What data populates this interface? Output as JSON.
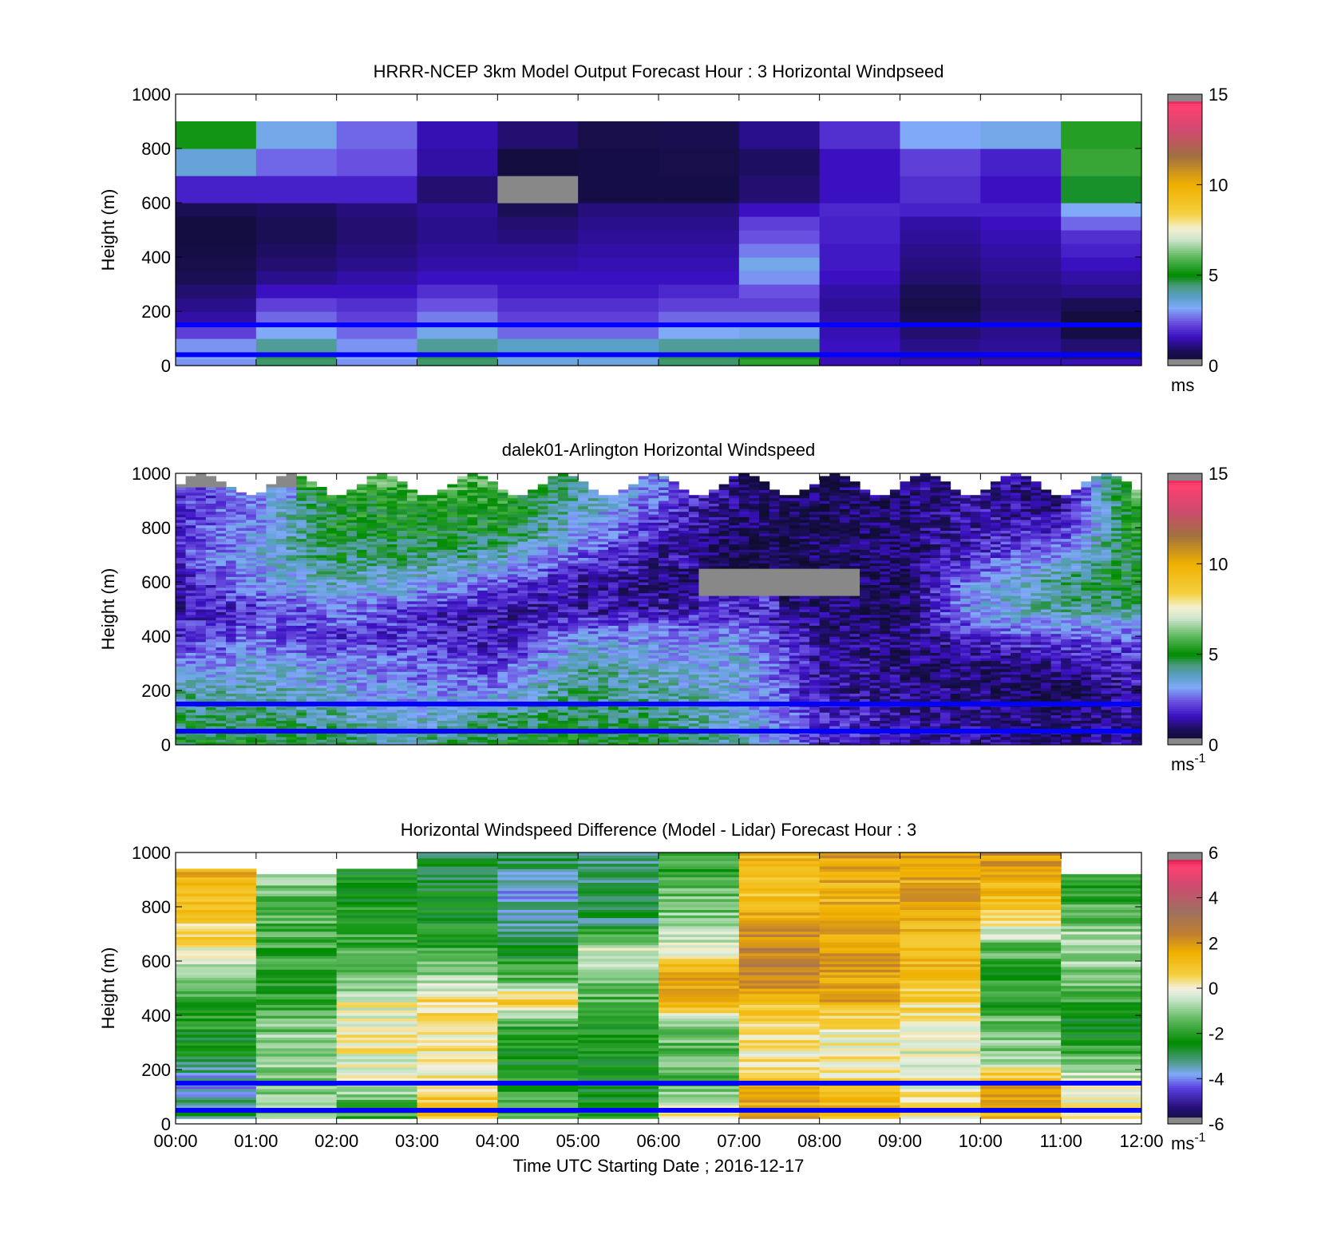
{
  "chart_data": [
    {
      "type": "heatmap",
      "title": "HRRR-NCEP 3km Model Output   Forecast Hour : 3 Horizontal Windpseed",
      "xlabel": "",
      "ylabel": "Height (m)",
      "xlim": [
        0,
        12
      ],
      "ylim": [
        0,
        1000
      ],
      "yticks": [
        "0",
        "200",
        "400",
        "600",
        "800",
        "1000"
      ],
      "colorbar": {
        "min": 0,
        "max": 15,
        "ticks": [
          "0",
          "5",
          "10",
          "15"
        ],
        "unit": "ms"
      },
      "reference_heights": [
        40,
        150
      ],
      "time_columns": 12,
      "height_bins": [
        25,
        50,
        100,
        150,
        200,
        250,
        300,
        350,
        400,
        450,
        500,
        550,
        600,
        700,
        800,
        900,
        1000
      ],
      "values": [
        [
          3.0,
          4.5,
          3.0,
          4.5,
          3.5,
          3.5,
          4.5,
          5.5,
          1.5,
          1.5,
          1.5,
          1.5
        ],
        [
          3.2,
          4.6,
          3.2,
          4.6,
          3.5,
          3.6,
          4.6,
          5.2,
          1.5,
          1.2,
          1.2,
          1.0
        ],
        [
          3.0,
          4.2,
          3.0,
          4.2,
          3.8,
          3.8,
          4.2,
          4.2,
          1.6,
          1.2,
          1.3,
          1.0
        ],
        [
          2.2,
          3.2,
          2.6,
          3.4,
          2.6,
          2.6,
          3.2,
          3.4,
          1.5,
          1.0,
          1.2,
          0.5
        ],
        [
          1.4,
          2.6,
          2.2,
          2.8,
          2.2,
          2.2,
          2.6,
          2.6,
          1.4,
          0.8,
          1.1,
          0.4
        ],
        [
          1.2,
          2.2,
          2.0,
          2.4,
          2.0,
          2.0,
          2.2,
          2.2,
          1.3,
          0.6,
          1.0,
          0.8
        ],
        [
          1.0,
          1.6,
          1.6,
          2.0,
          1.7,
          1.7,
          1.9,
          2.4,
          1.4,
          0.8,
          1.1,
          1.2
        ],
        [
          0.8,
          1.2,
          1.4,
          1.6,
          1.6,
          1.6,
          1.6,
          3.0,
          1.6,
          1.0,
          1.2,
          1.4
        ],
        [
          0.6,
          1.0,
          1.2,
          1.4,
          1.4,
          1.5,
          1.5,
          3.4,
          1.7,
          1.1,
          1.3,
          1.6
        ],
        [
          0.5,
          0.9,
          1.1,
          1.3,
          1.3,
          1.4,
          1.4,
          2.8,
          1.7,
          1.2,
          1.4,
          1.8
        ],
        [
          0.4,
          0.8,
          1.0,
          1.2,
          1.1,
          1.3,
          1.3,
          2.4,
          1.8,
          1.3,
          1.5,
          2.0
        ],
        [
          0.4,
          0.8,
          1.0,
          1.2,
          1.0,
          1.2,
          1.2,
          2.2,
          1.8,
          1.4,
          1.6,
          2.6
        ],
        [
          0.8,
          0.9,
          1.1,
          1.3,
          0.8,
          1.1,
          1.1,
          1.6,
          1.9,
          1.8,
          1.8,
          3.2
        ],
        [
          1.8,
          1.8,
          1.8,
          1.0,
          -1,
          0.5,
          0.5,
          1.0,
          1.6,
          2.0,
          1.6,
          4.8
        ],
        [
          3.6,
          2.6,
          2.4,
          1.4,
          0.4,
          0.5,
          0.6,
          0.9,
          1.6,
          2.2,
          1.8,
          5.6
        ],
        [
          5.2,
          3.4,
          2.6,
          1.5,
          1.0,
          0.6,
          0.7,
          1.2,
          2.0,
          3.2,
          3.4,
          5.4
        ]
      ]
    },
    {
      "type": "heatmap",
      "title": "dalek01-Arlington  Horizontal Windspeed",
      "xlabel": "",
      "ylabel": "Height (m)",
      "xlim": [
        0,
        12
      ],
      "ylim": [
        0,
        1000
      ],
      "yticks": [
        "0",
        "200",
        "400",
        "600",
        "800",
        "1000"
      ],
      "colorbar": {
        "min": 0,
        "max": 15,
        "ticks": [
          "0",
          "5",
          "10",
          "15"
        ],
        "unit": "ms",
        "unit_exponent": "-1"
      },
      "reference_heights": [
        50,
        150
      ],
      "approx_profiles": {
        "time_hours": [
          0,
          1,
          2,
          3,
          4,
          5,
          6,
          7,
          8,
          9,
          10,
          11,
          12
        ],
        "height_m": [
          0,
          100,
          200,
          300,
          400,
          500,
          600,
          700,
          800,
          900,
          1000
        ],
        "values": [
          [
            5.0,
            4.5,
            4.0,
            2.5,
            2.0,
            1.5,
            1.5,
            2.0,
            2.0,
            2.0,
            -1
          ],
          [
            5.0,
            4.5,
            4.0,
            3.5,
            2.5,
            2.0,
            3.0,
            3.5,
            3.0,
            3.0,
            -1
          ],
          [
            5.0,
            4.0,
            3.5,
            3.0,
            2.0,
            3.0,
            4.0,
            4.5,
            5.0,
            5.0,
            6.0
          ],
          [
            4.0,
            3.5,
            3.0,
            2.5,
            2.0,
            2.0,
            3.5,
            4.5,
            5.0,
            5.5,
            6.0
          ],
          [
            5.0,
            4.5,
            3.0,
            2.0,
            1.5,
            1.5,
            2.5,
            4.0,
            5.0,
            5.5,
            6.0
          ],
          [
            5.0,
            4.5,
            4.5,
            4.0,
            3.0,
            1.5,
            1.5,
            2.5,
            3.5,
            4.0,
            4.5
          ],
          [
            5.0,
            4.5,
            4.0,
            3.5,
            3.0,
            1.5,
            1.0,
            1.5,
            2.0,
            2.5,
            3.0
          ],
          [
            4.0,
            3.5,
            3.5,
            3.5,
            3.0,
            2.0,
            -1,
            0.5,
            0.8,
            1.0,
            1.0
          ],
          [
            2.0,
            2.0,
            1.5,
            1.5,
            1.2,
            1.0,
            -1,
            0.8,
            0.8,
            0.8,
            0.8
          ],
          [
            1.5,
            1.5,
            1.2,
            1.0,
            1.0,
            0.8,
            0.8,
            0.8,
            1.0,
            1.0,
            1.0
          ],
          [
            1.5,
            1.2,
            1.0,
            1.0,
            2.0,
            3.5,
            3.0,
            2.0,
            1.5,
            1.5,
            1.5
          ],
          [
            1.0,
            1.0,
            0.5,
            1.5,
            2.5,
            4.0,
            4.5,
            3.0,
            2.0,
            1.0,
            1.0
          ],
          [
            1.5,
            1.5,
            1.5,
            2.0,
            2.5,
            4.5,
            5.0,
            5.0,
            5.5,
            6.0,
            6.5
          ]
        ]
      }
    },
    {
      "type": "heatmap",
      "title": "Horizontal Windspeed Difference (Model - Lidar) Forecast Hour : 3",
      "xlabel": "Time UTC  Starting Date ; 2016-12-17",
      "ylabel": "Height (m)",
      "xlim": [
        0,
        12
      ],
      "ylim": [
        0,
        1000
      ],
      "xticks": [
        "00:00",
        "01:00",
        "02:00",
        "03:00",
        "04:00",
        "05:00",
        "06:00",
        "07:00",
        "08:00",
        "09:00",
        "10:00",
        "11:00",
        "12:00"
      ],
      "yticks": [
        "0",
        "200",
        "400",
        "600",
        "800",
        "1000"
      ],
      "colorbar": {
        "min": -6,
        "max": 6,
        "ticks": [
          "-6",
          "-4",
          "-2",
          "0",
          "2",
          "4",
          "6"
        ],
        "unit": "ms",
        "unit_exponent": "-1"
      },
      "reference_heights": [
        50,
        150
      ],
      "column_tops": [
        940,
        920,
        940,
        1000,
        1000,
        1000,
        1000,
        1000,
        1000,
        1000,
        1000,
        920
      ],
      "approx_profiles": {
        "time_hours": [
          0,
          1,
          2,
          3,
          4,
          5,
          6,
          7,
          8,
          9,
          10,
          11
        ],
        "height_m": [
          50,
          150,
          250,
          350,
          450,
          550,
          650,
          750,
          850,
          950
        ],
        "values": [
          [
            -3.0,
            -3.8,
            -2.5,
            -2.2,
            -1.8,
            -1.0,
            0.3,
            0.8,
            1.4,
            1.6
          ],
          [
            -1.2,
            -1.0,
            -0.8,
            -1.2,
            -1.8,
            -2.0,
            -1.8,
            -1.6,
            -1.2,
            -0.5
          ],
          [
            -1.8,
            -0.4,
            0.0,
            0.2,
            -0.2,
            -1.2,
            -1.8,
            -2.0,
            -2.3,
            -2.6
          ],
          [
            1.0,
            0.3,
            0.2,
            0.4,
            0.5,
            -1.2,
            -1.8,
            -2.3,
            -2.6,
            -2.8
          ],
          [
            -1.6,
            -2.2,
            -2.4,
            -2.2,
            0.8,
            -1.8,
            -2.5,
            -3.5,
            -3.6,
            -3.0
          ],
          [
            -2.4,
            -2.6,
            -2.5,
            -2.2,
            -1.6,
            -1.2,
            -0.4,
            -3.0,
            -3.2,
            -3.0
          ],
          [
            0.2,
            -1.4,
            -1.4,
            -1.2,
            1.4,
            1.6,
            -0.2,
            -1.0,
            -1.4,
            -1.8
          ],
          [
            1.6,
            1.4,
            0.0,
            0.4,
            1.2,
            2.4,
            2.6,
            1.6,
            1.0,
            1.4
          ],
          [
            1.4,
            0.6,
            0.0,
            0.2,
            1.6,
            1.8,
            1.9,
            1.6,
            1.4,
            1.8
          ],
          [
            0.2,
            0.0,
            -0.2,
            0.0,
            0.6,
            1.2,
            1.4,
            1.4,
            1.6,
            1.6
          ],
          [
            1.4,
            1.6,
            -1.0,
            -1.2,
            -2.0,
            -2.2,
            -1.4,
            0.4,
            1.2,
            2.0
          ],
          [
            0.2,
            0.0,
            -1.5,
            -2.4,
            -2.0,
            -1.0,
            -0.5,
            -1.2,
            -2.0,
            -2.2
          ]
        ]
      }
    }
  ]
}
